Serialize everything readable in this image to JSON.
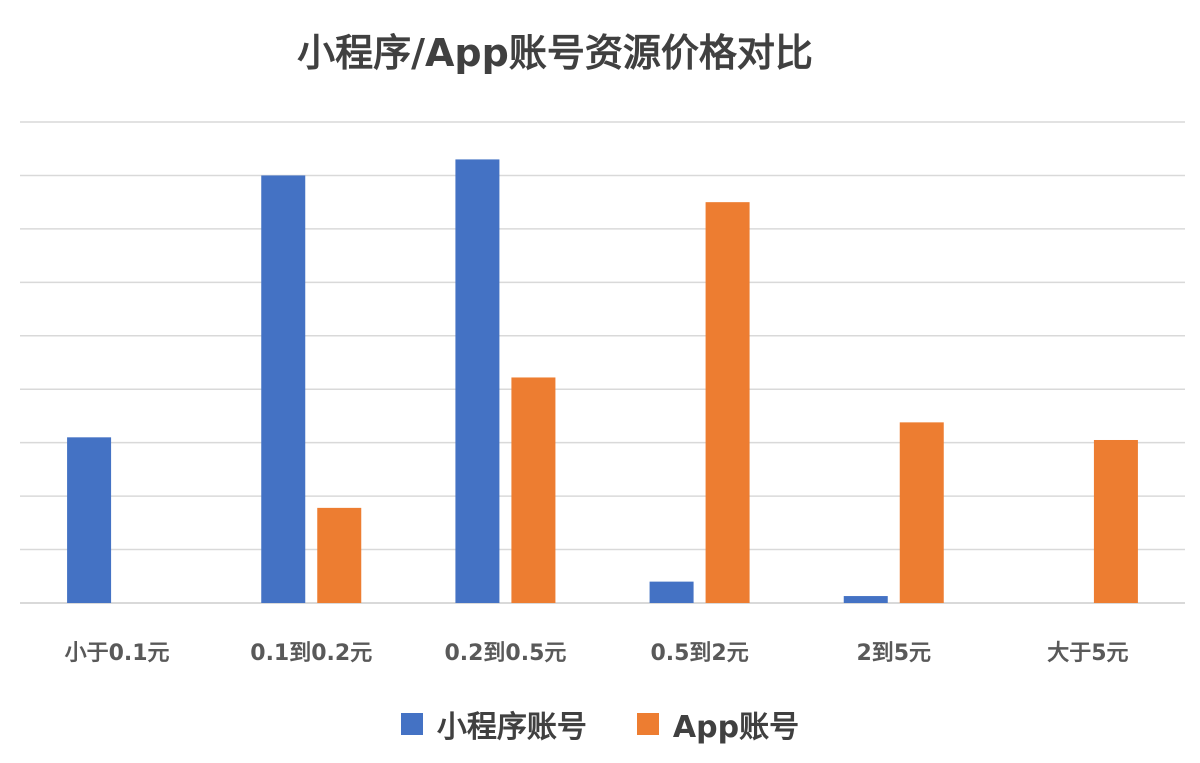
{
  "chart_data": {
    "type": "bar",
    "title": "小程序/App账号资源价格对比",
    "categories": [
      "小于0.1元",
      "0.1到0.2元",
      "0.2到0.5元",
      "0.5到2元",
      "2到5元",
      "大于5元"
    ],
    "series": [
      {
        "name": "小程序账号",
        "color": "#4472C4",
        "values": [
          3.1,
          8.0,
          8.3,
          0.4,
          0.13,
          0
        ]
      },
      {
        "name": "App账号",
        "color": "#ED7D31",
        "values": [
          0,
          1.78,
          4.22,
          7.5,
          3.38,
          3.05
        ]
      }
    ],
    "ylim": [
      0,
      9
    ],
    "y_ticks_labeled": false,
    "grid": true,
    "legend": "bottom"
  }
}
